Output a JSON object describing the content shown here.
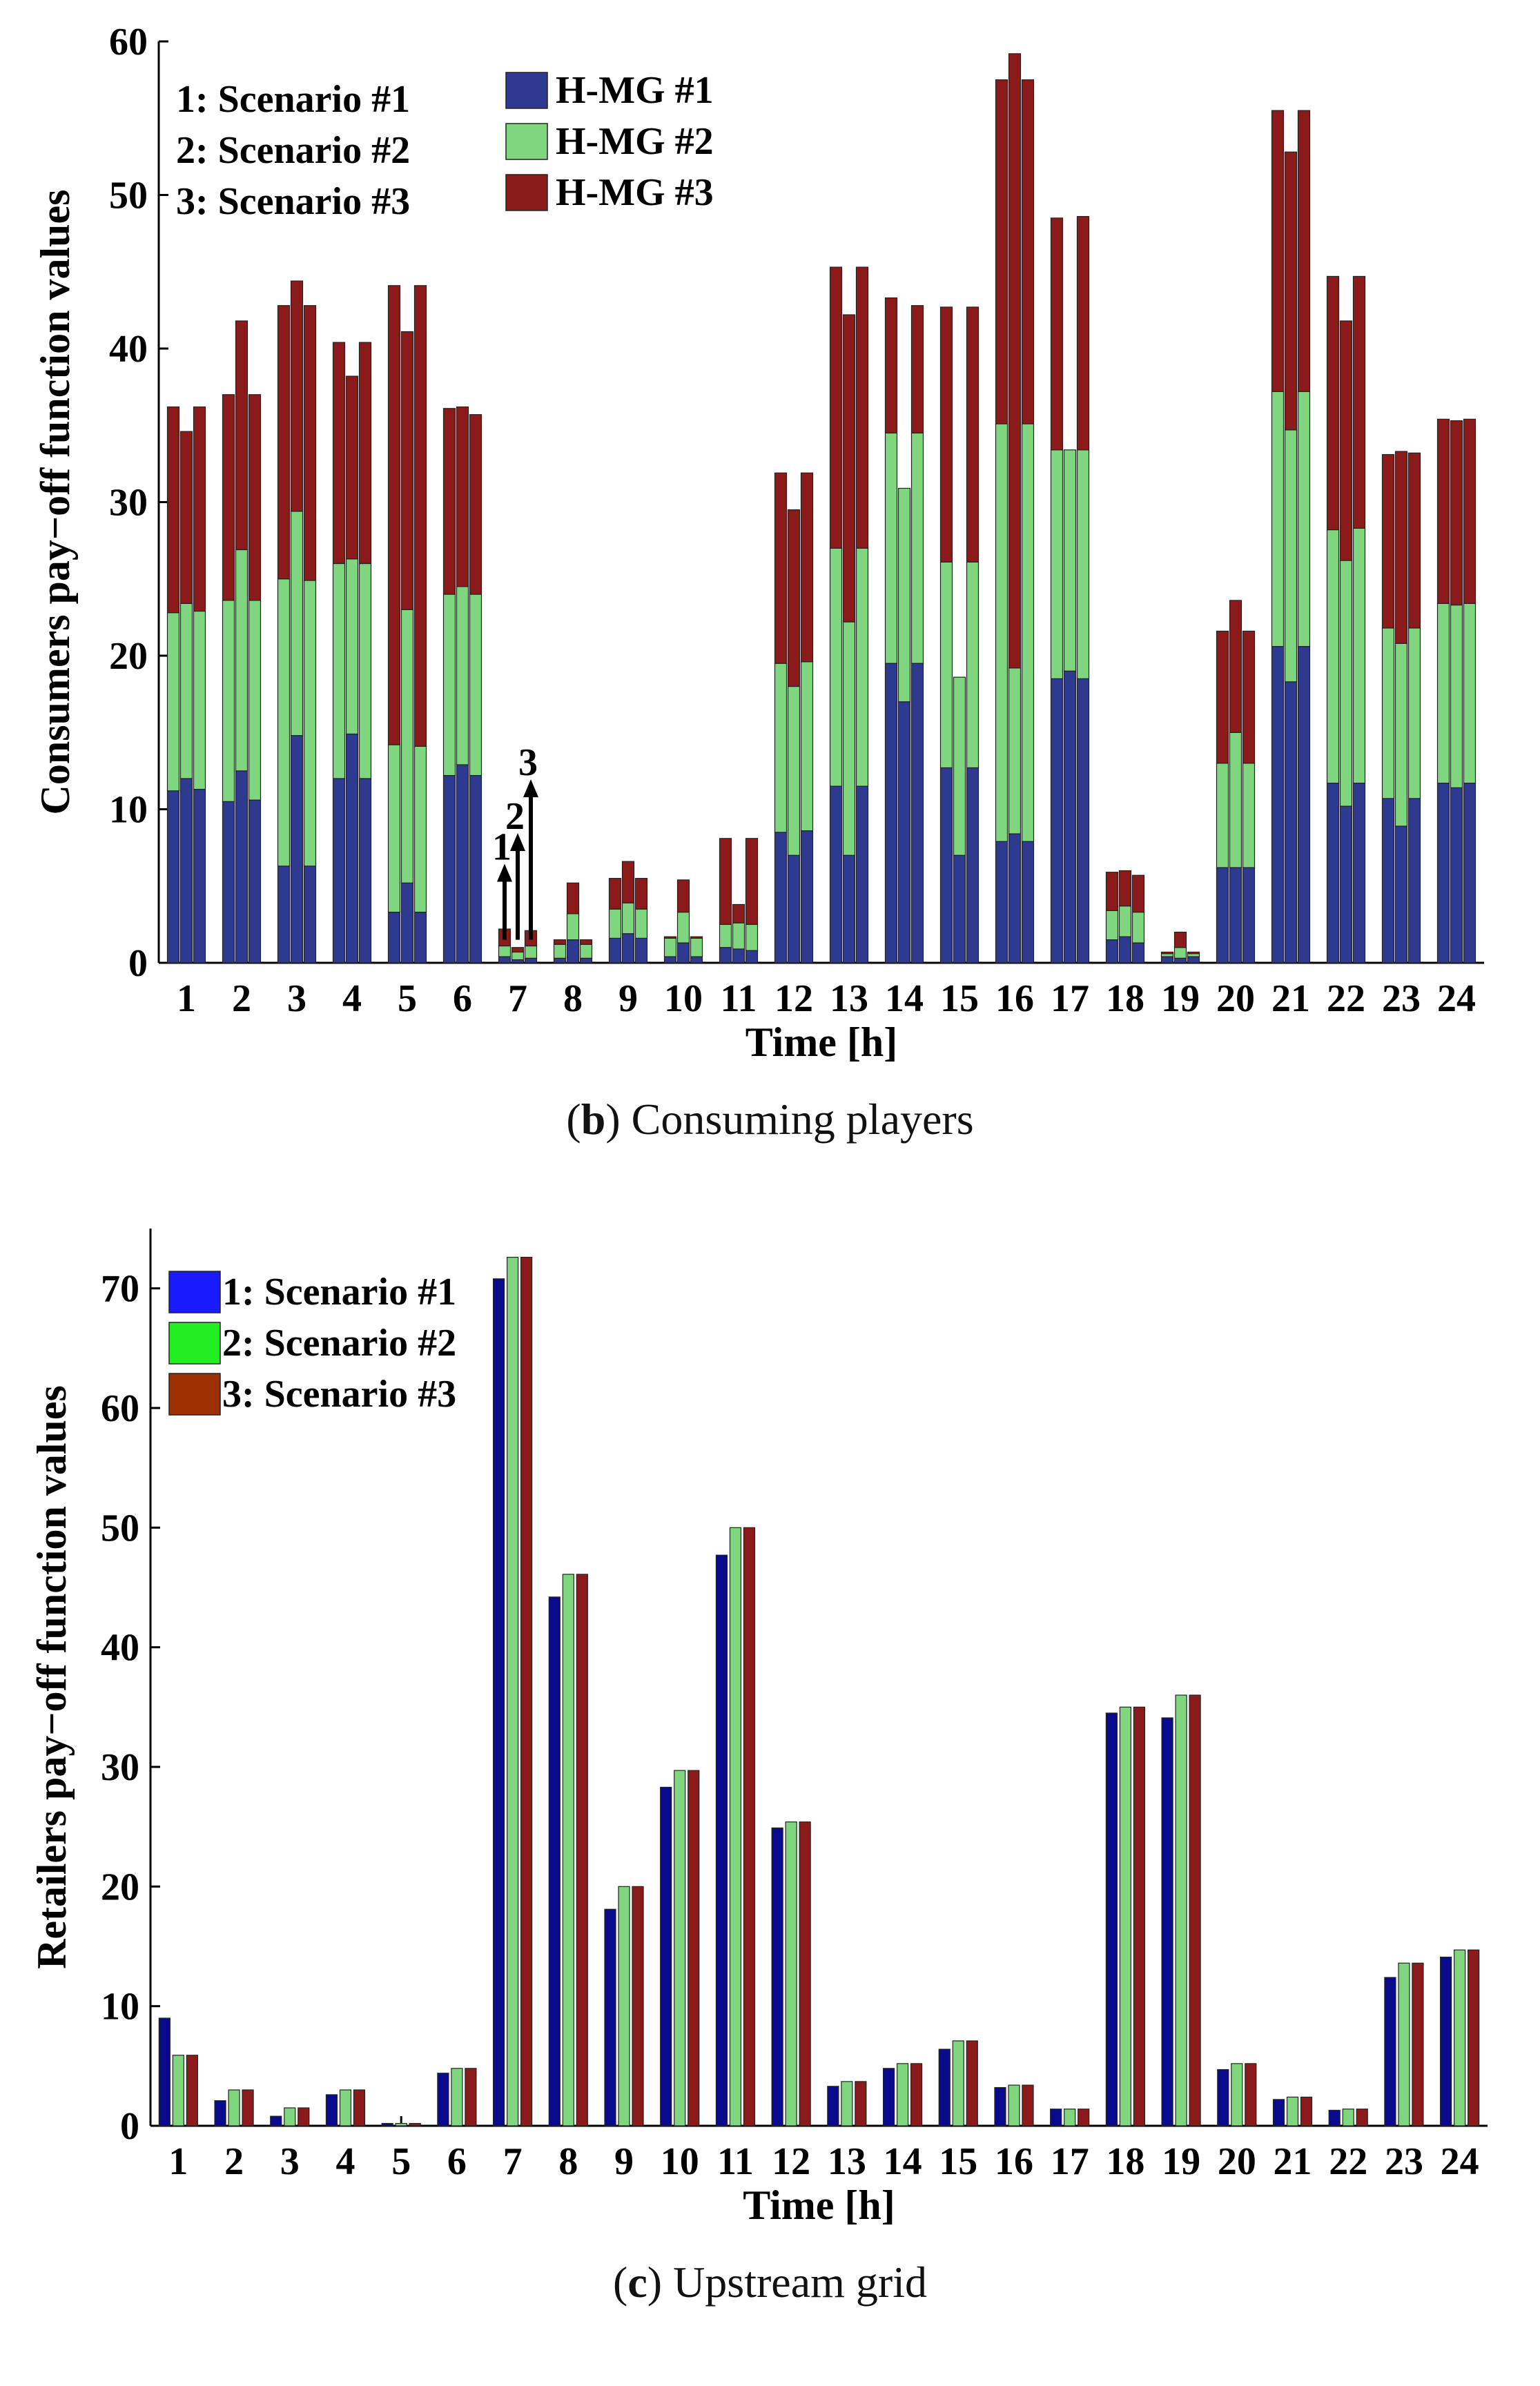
{
  "chart_data": [
    {
      "type": "bar",
      "stacked": true,
      "panel_caption_letter": "b",
      "panel_caption_text": "Consuming players",
      "xlabel": "Time [h]",
      "ylabel": "Consumers pay−off function values",
      "ylim": [
        0,
        60
      ],
      "yticks": [
        "0",
        "10",
        "20",
        "30",
        "40",
        "50",
        "60"
      ],
      "categories": [
        "1",
        "2",
        "3",
        "4",
        "5",
        "6",
        "7",
        "8",
        "9",
        "10",
        "11",
        "12",
        "13",
        "14",
        "15",
        "16",
        "17",
        "18",
        "19",
        "20",
        "21",
        "22",
        "23",
        "24"
      ],
      "scenario_legend": [
        "1: Scenario #1",
        "2: Scenario #2",
        "3: Scenario #3"
      ],
      "series_legend": [
        {
          "name": "H-MG #1",
          "color": "#2e3a8f"
        },
        {
          "name": "H-MG #2",
          "color": "#7fd67f"
        },
        {
          "name": "H-MG #3",
          "color": "#8b1a1a"
        }
      ],
      "arrow_labels": [
        "1",
        "2",
        "3"
      ],
      "scenarios": [
        {
          "scenario": "Scenario #1",
          "hmg1": [
            11.2,
            10.5,
            6.3,
            12.0,
            3.3,
            12.2,
            0.4,
            0.3,
            1.6,
            0.4,
            1.0,
            8.5,
            11.5,
            19.5,
            12.7,
            7.9,
            18.5,
            1.5,
            0.4,
            6.2,
            20.6,
            11.7,
            10.7,
            11.7
          ],
          "hmg2": [
            11.6,
            13.1,
            18.7,
            14.0,
            10.9,
            11.8,
            0.7,
            0.9,
            1.9,
            1.2,
            1.5,
            11.0,
            15.5,
            15.0,
            13.4,
            27.2,
            14.9,
            1.9,
            0.2,
            6.8,
            16.6,
            16.5,
            11.1,
            11.7
          ],
          "hmg3": [
            13.4,
            13.4,
            17.8,
            14.4,
            29.9,
            12.1,
            1.1,
            0.3,
            2.0,
            0.1,
            5.6,
            12.4,
            18.3,
            8.8,
            16.6,
            22.4,
            15.1,
            2.5,
            0.1,
            8.6,
            18.3,
            16.5,
            11.3,
            12.0
          ]
        },
        {
          "scenario": "Scenario #2",
          "hmg1": [
            12.0,
            12.5,
            14.8,
            14.9,
            5.2,
            12.9,
            0.2,
            1.5,
            1.9,
            1.3,
            0.9,
            7.0,
            7.0,
            17.0,
            7.0,
            8.4,
            19.0,
            1.7,
            0.3,
            6.2,
            18.3,
            10.2,
            8.9,
            11.4
          ],
          "hmg2": [
            11.4,
            14.4,
            14.6,
            11.4,
            17.8,
            11.6,
            0.5,
            1.7,
            2.0,
            2.0,
            1.7,
            11.0,
            15.2,
            13.9,
            11.6,
            10.8,
            14.4,
            2.0,
            0.7,
            8.8,
            16.4,
            16.0,
            11.9,
            11.9
          ],
          "hmg3": [
            11.2,
            14.9,
            15.0,
            11.9,
            18.1,
            11.7,
            0.3,
            2.0,
            2.7,
            2.1,
            1.2,
            11.5,
            20.0,
            0.0,
            0.0,
            40.0,
            0.0,
            2.3,
            1.0,
            8.6,
            18.1,
            15.6,
            12.5,
            12.0
          ]
        },
        {
          "scenario": "Scenario #3",
          "hmg1": [
            11.3,
            10.6,
            6.3,
            12.0,
            3.3,
            12.2,
            0.3,
            0.3,
            1.6,
            0.4,
            0.8,
            8.6,
            11.5,
            19.5,
            12.7,
            7.9,
            18.5,
            1.3,
            0.4,
            6.2,
            20.6,
            11.7,
            10.7,
            11.7
          ],
          "hmg2": [
            11.6,
            13.0,
            18.6,
            14.0,
            10.8,
            11.8,
            0.8,
            0.9,
            1.9,
            1.2,
            1.7,
            11.0,
            15.5,
            15.0,
            13.4,
            27.2,
            14.9,
            2.0,
            0.2,
            6.8,
            16.6,
            16.6,
            11.1,
            11.7
          ],
          "hmg3": [
            13.3,
            13.4,
            17.9,
            14.4,
            30.0,
            11.7,
            1.0,
            0.3,
            2.0,
            0.1,
            5.6,
            12.3,
            18.3,
            8.3,
            16.6,
            22.4,
            15.2,
            2.4,
            0.1,
            8.6,
            18.3,
            16.4,
            11.4,
            12.0
          ]
        }
      ]
    },
    {
      "type": "bar",
      "panel_caption_letter": "c",
      "panel_caption_text": "Upstream grid",
      "xlabel": "Time [h]",
      "ylabel": "Retailers pay−off function values",
      "ylim": [
        0,
        75
      ],
      "yticks": [
        "0",
        "10",
        "20",
        "30",
        "40",
        "50",
        "60",
        "70"
      ],
      "categories": [
        "1",
        "2",
        "3",
        "4",
        "5",
        "6",
        "7",
        "8",
        "9",
        "10",
        "11",
        "12",
        "13",
        "14",
        "15",
        "16",
        "17",
        "18",
        "19",
        "20",
        "21",
        "22",
        "23",
        "24"
      ],
      "series": [
        {
          "name": "1: Scenario #1",
          "color": "#0a0a8c",
          "legend_color": "#1a1aff",
          "values": [
            9.0,
            2.1,
            0.8,
            2.6,
            0.2,
            4.4,
            70.8,
            44.2,
            18.1,
            28.3,
            47.7,
            24.9,
            3.3,
            4.8,
            6.4,
            3.2,
            1.4,
            34.5,
            34.1,
            4.7,
            2.2,
            1.3,
            12.4,
            14.1
          ]
        },
        {
          "name": "2: Scenario #2",
          "color": "#7fd67f",
          "legend_color": "#22ee22",
          "values": [
            5.9,
            3.0,
            1.5,
            3.0,
            0.2,
            4.8,
            72.6,
            46.1,
            20.0,
            29.7,
            50.0,
            25.4,
            3.7,
            5.2,
            7.1,
            3.4,
            1.4,
            35.0,
            36.0,
            5.2,
            2.4,
            1.4,
            13.6,
            14.7
          ]
        },
        {
          "name": "3: Scenario #3",
          "color": "#8b1a1a",
          "legend_color": "#9c3000",
          "values": [
            5.9,
            3.0,
            1.5,
            3.0,
            0.2,
            4.8,
            72.6,
            46.1,
            20.0,
            29.7,
            50.0,
            25.4,
            3.7,
            5.2,
            7.1,
            3.4,
            1.4,
            35.0,
            36.0,
            5.2,
            2.4,
            1.4,
            13.6,
            14.7
          ]
        }
      ]
    }
  ]
}
